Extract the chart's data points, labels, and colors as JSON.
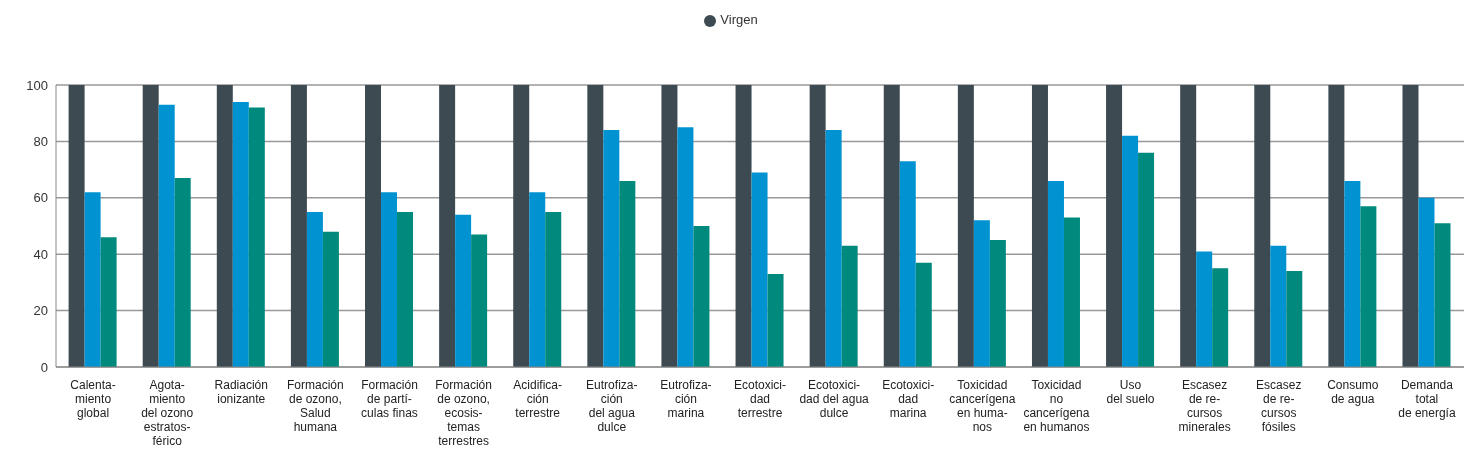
{
  "chart_data": {
    "type": "bar",
    "categories": [
      "Calenta-\nmiento\nglobal",
      "Agota-\nmiento\ndel ozono\nestratos-\nférico",
      "Radiación\nionizante",
      "Formación\nde ozono,\nSalud\nhumana",
      "Formación\nde partí-\nculas finas",
      "Formación\nde ozono,\necosis-\ntemas\nterrestres",
      "Acidifica-\nción\nterrestre",
      "Eutrofiza-\nción\ndel agua\ndulce",
      "Eutrofiza-\nción\nmarina",
      "Ecotoxici-\ndad\nterrestre",
      "Ecotoxici-\ndad del agua\ndulce",
      "Ecotoxici-\ndad\nmarina",
      "Toxicidad\ncancerígena\nen huma-\nnos",
      "Toxicidad\nno\ncancerígena\nen humanos",
      "Uso\ndel suelo",
      "Escasez\nde re-\ncursos\nminerales",
      "Escasez\nde re-\ncursos\nfósiles",
      "Consumo\nde agua",
      "Demanda\ntotal\nde energía"
    ],
    "series": [
      {
        "name": "Virgen",
        "color": "#3d4a51",
        "values": [
          100,
          100,
          100,
          100,
          100,
          100,
          100,
          100,
          100,
          100,
          100,
          100,
          100,
          100,
          100,
          100,
          100,
          100,
          100
        ]
      },
      {
        "color": "#0092d1",
        "values": [
          62,
          93,
          94,
          55,
          62,
          54,
          62,
          84,
          85,
          69,
          84,
          73,
          52,
          66,
          82,
          41,
          43,
          66,
          60
        ]
      },
      {
        "color": "#00897d",
        "values": [
          46,
          67,
          92,
          48,
          55,
          47,
          55,
          66,
          50,
          33,
          43,
          37,
          45,
          53,
          76,
          35,
          34,
          57,
          51
        ]
      }
    ],
    "ylim": [
      0,
      100
    ],
    "yticks": [
      0,
      20,
      40,
      60,
      80,
      100
    ],
    "grid": "y",
    "legend": "top"
  }
}
